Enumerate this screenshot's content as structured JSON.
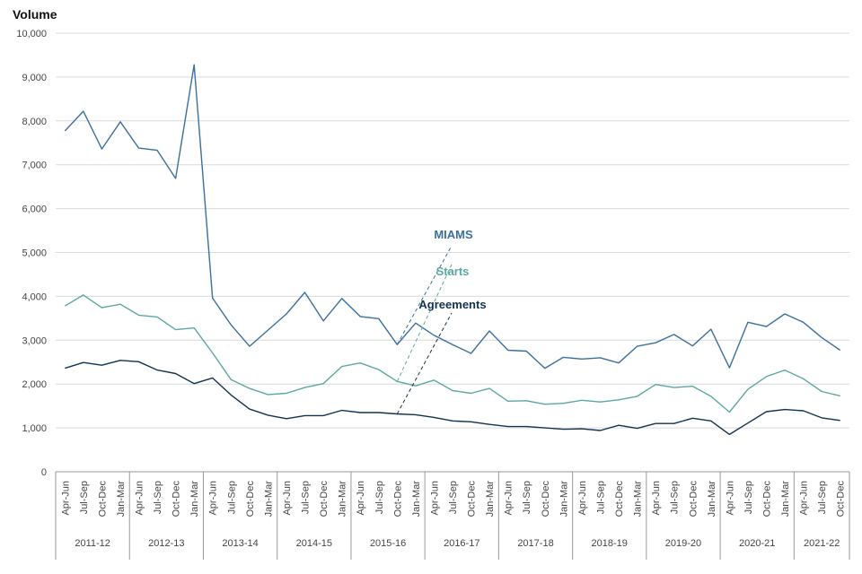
{
  "chart_data": {
    "type": "line",
    "ylabel": "Volume",
    "ylim": [
      0,
      10000
    ],
    "yticks": [
      0,
      1000,
      2000,
      3000,
      4000,
      5000,
      6000,
      7000,
      8000,
      9000,
      10000
    ],
    "ytick_labels": [
      "0",
      "1,000",
      "2,000",
      "3,000",
      "4,000",
      "5,000",
      "6,000",
      "7,000",
      "8,000",
      "9,000",
      "10,000"
    ],
    "categories": [
      "Apr-Jun",
      "Jul-Sep",
      "Oct-Dec",
      "Jan-Mar",
      "Apr-Jun",
      "Jul-Sep",
      "Oct-Dec",
      "Jan-Mar",
      "Apr-Jun",
      "Jul-Sep",
      "Oct-Dec",
      "Jan-Mar",
      "Apr-Jun",
      "Jul-Sep",
      "Oct-Dec",
      "Jan-Mar",
      "Apr-Jun",
      "Jul-Sep",
      "Oct-Dec",
      "Jan-Mar",
      "Apr-Jun",
      "Jul-Sep",
      "Oct-Dec",
      "Jan-Mar",
      "Apr-Jun",
      "Jul-Sep",
      "Oct-Dec",
      "Jan-Mar",
      "Apr-Jun",
      "Jul-Sep",
      "Oct-Dec",
      "Jan-Mar",
      "Apr-Jun",
      "Jul-Sep",
      "Oct-Dec",
      "Jan-Mar",
      "Apr-Jun",
      "Jul-Sep",
      "Oct-Dec",
      "Jan-Mar",
      "Apr-Jun",
      "Jul-Sep",
      "Oct-Dec"
    ],
    "groups": [
      "2011-12",
      "2012-13",
      "2013-14",
      "2014-15",
      "2015-16",
      "2016-17",
      "2017-18",
      "2018-19",
      "2019-20",
      "2020-21",
      "2021-22"
    ],
    "series": [
      {
        "name": "MIAMS",
        "color": "#3a6f9f",
        "values": [
          7770,
          8220,
          7360,
          7980,
          7380,
          7330,
          6690,
          9280,
          3960,
          3350,
          2860,
          3230,
          3600,
          4090,
          3440,
          3950,
          3540,
          3490,
          2900,
          3390,
          3110,
          2900,
          2700,
          3210,
          2770,
          2750,
          2360,
          2610,
          2570,
          2600,
          2480,
          2860,
          2940,
          3130,
          2870,
          3250,
          2370,
          3410,
          3310,
          3600,
          3410,
          3060,
          2770
        ]
      },
      {
        "name": "Starts",
        "color": "#5ba8a0",
        "values": [
          3780,
          4030,
          3740,
          3820,
          3570,
          3530,
          3240,
          3280,
          2710,
          2100,
          1900,
          1760,
          1790,
          1920,
          2010,
          2400,
          2480,
          2330,
          2060,
          1960,
          2090,
          1850,
          1790,
          1900,
          1610,
          1620,
          1540,
          1560,
          1630,
          1590,
          1640,
          1720,
          1990,
          1920,
          1950,
          1720,
          1360,
          1880,
          2170,
          2320,
          2120,
          1830,
          1730
        ]
      },
      {
        "name": "Agreements",
        "color": "#12324f",
        "values": [
          2360,
          2490,
          2430,
          2540,
          2510,
          2320,
          2240,
          2010,
          2140,
          1750,
          1430,
          1290,
          1210,
          1280,
          1280,
          1400,
          1350,
          1350,
          1320,
          1300,
          1240,
          1160,
          1140,
          1080,
          1030,
          1030,
          1000,
          970,
          980,
          940,
          1060,
          990,
          1100,
          1100,
          1220,
          1160,
          850,
          1110,
          1370,
          1420,
          1390,
          1230,
          1170
        ]
      }
    ]
  }
}
